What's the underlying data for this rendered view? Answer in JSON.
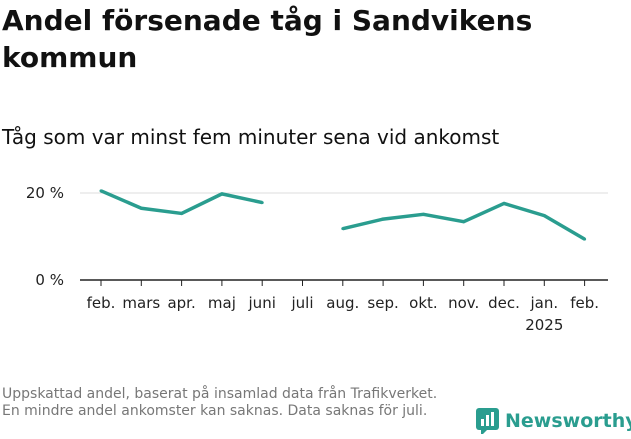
{
  "title": "Andel försenade tåg i Sandvikens kommun",
  "subtitle": "Tåg som var minst fem minuter sena vid ankomst",
  "footnote": "Uppskattad andel, baserat på insamlad data från Trafikverket. En mindre andel ankomster kan saknas. Data saknas för juli.",
  "brand": {
    "name": "Newsworthy",
    "color": "#2a9d8f"
  },
  "chart_data": {
    "type": "line",
    "categories": [
      "feb.",
      "mars",
      "apr.",
      "maj",
      "juni",
      "juli",
      "aug.",
      "sep.",
      "okt.",
      "nov.",
      "dec.",
      "jan.",
      "feb."
    ],
    "year_labels": [
      "",
      "",
      "",
      "",
      "",
      "",
      "",
      "",
      "",
      "",
      "",
      "2025",
      ""
    ],
    "series": [
      {
        "color": "#2a9d8f",
        "values": [
          20.5,
          16.5,
          15.3,
          19.8,
          17.8,
          null,
          11.8,
          14.0,
          15.1,
          13.4,
          17.6,
          14.8,
          9.4
        ]
      }
    ],
    "yticks": [
      0,
      20
    ],
    "ytick_labels": [
      "0 %",
      "20 %"
    ],
    "ylim": [
      0,
      22
    ],
    "grid": true,
    "line_color": "#2a9d8f"
  }
}
